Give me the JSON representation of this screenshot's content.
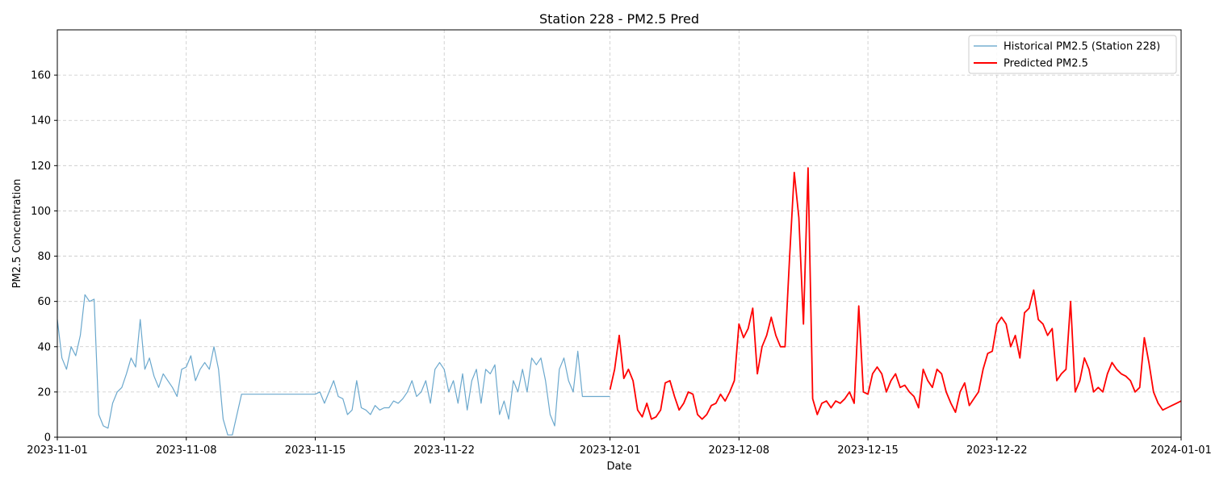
{
  "chart_data": {
    "type": "line",
    "title": "Station 228 - PM2.5 Pred",
    "xlabel": "Date",
    "ylabel": "PM2.5 Concentration",
    "xlim": [
      "2023-11-01",
      "2024-01-01"
    ],
    "ylim": [
      0,
      180
    ],
    "yticks": [
      0,
      20,
      40,
      60,
      80,
      100,
      120,
      140,
      160
    ],
    "xticks": [
      "2023-11-01",
      "2023-11-08",
      "2023-11-15",
      "2023-11-22",
      "2023-12-01",
      "2023-12-08",
      "2023-12-15",
      "2023-12-22",
      "2024-01-01"
    ],
    "grid": true,
    "legend_position": "top-right",
    "series": [
      {
        "name": "Historical PM2.5 (Station 228)",
        "color": "#5b9fc8",
        "x": [
          "2023-11-01",
          "2023-11-01T06",
          "2023-11-01T12",
          "2023-11-01T18",
          "2023-11-02",
          "2023-11-02T06",
          "2023-11-02T12",
          "2023-11-02T18",
          "2023-11-03",
          "2023-11-03T06",
          "2023-11-03T12",
          "2023-11-03T18",
          "2023-11-04",
          "2023-11-04T06",
          "2023-11-04T12",
          "2023-11-04T18",
          "2023-11-05",
          "2023-11-05T06",
          "2023-11-05T12",
          "2023-11-05T18",
          "2023-11-06",
          "2023-11-06T06",
          "2023-11-06T12",
          "2023-11-06T18",
          "2023-11-07",
          "2023-11-07T06",
          "2023-11-07T12",
          "2023-11-07T18",
          "2023-11-08",
          "2023-11-08T06",
          "2023-11-08T12",
          "2023-11-08T18",
          "2023-11-09",
          "2023-11-09T06",
          "2023-11-09T12",
          "2023-11-09T18",
          "2023-11-10",
          "2023-11-10T06",
          "2023-11-10T12",
          "2023-11-10T18",
          "2023-11-11",
          "2023-11-12T06",
          "2023-11-12T09",
          "2023-11-13",
          "2023-11-14",
          "2023-11-15",
          "2023-11-15T06",
          "2023-11-15T12",
          "2023-11-15T18",
          "2023-11-16",
          "2023-11-16T06",
          "2023-11-16T12",
          "2023-11-16T18",
          "2023-11-17",
          "2023-11-17T06",
          "2023-11-17T12",
          "2023-11-17T18",
          "2023-11-18",
          "2023-11-18T06",
          "2023-11-18T12",
          "2023-11-18T18",
          "2023-11-19",
          "2023-11-19T06",
          "2023-11-19T12",
          "2023-11-19T18",
          "2023-11-20",
          "2023-11-20T06",
          "2023-11-20T12",
          "2023-11-20T18",
          "2023-11-21",
          "2023-11-21T06",
          "2023-11-21T12",
          "2023-11-21T18",
          "2023-11-22",
          "2023-11-22T06",
          "2023-11-22T12",
          "2023-11-22T18",
          "2023-11-23",
          "2023-11-23T06",
          "2023-11-23T12",
          "2023-11-23T18",
          "2023-11-24",
          "2023-11-24T06",
          "2023-11-24T12",
          "2023-11-24T18",
          "2023-11-25",
          "2023-11-25T06",
          "2023-11-25T12",
          "2023-11-25T18",
          "2023-11-26",
          "2023-11-26T06",
          "2023-11-26T12",
          "2023-11-26T18",
          "2023-11-27",
          "2023-11-27T06",
          "2023-11-27T12",
          "2023-11-27T18",
          "2023-11-28",
          "2023-11-28T06",
          "2023-11-28T12",
          "2023-11-28T18",
          "2023-11-29",
          "2023-11-29T06",
          "2023-11-29T12",
          "2023-11-29T18",
          "2023-11-30",
          "2023-11-30T06",
          "2023-11-30T12",
          "2023-11-30T18",
          "2023-12-01"
        ],
        "y": [
          52,
          35,
          30,
          40,
          36,
          45,
          63,
          60,
          61,
          10,
          5,
          4,
          15,
          20,
          22,
          28,
          35,
          31,
          52,
          30,
          35,
          27,
          22,
          28,
          25,
          22,
          18,
          30,
          31,
          36,
          25,
          30,
          33,
          30,
          40,
          30,
          8,
          1,
          1,
          10,
          19,
          19,
          19,
          19,
          19,
          19,
          20,
          15,
          20,
          25,
          18,
          17,
          10,
          12,
          25,
          13,
          12,
          10,
          14,
          12,
          13,
          13,
          16,
          15,
          17,
          20,
          25,
          18,
          20,
          25,
          15,
          30,
          33,
          30,
          20,
          25,
          15,
          28,
          12,
          25,
          30,
          15,
          30,
          28,
          32,
          10,
          16,
          8,
          25,
          20,
          30,
          20,
          35,
          32,
          35,
          25,
          10,
          5,
          30,
          35,
          25,
          20,
          38,
          18,
          18,
          18,
          18,
          18,
          18,
          18
        ]
      },
      {
        "name": "Predicted PM2.5",
        "color": "#ff0000",
        "x": [
          "2023-12-01",
          "2023-12-01T06",
          "2023-12-01T12",
          "2023-12-01T18",
          "2023-12-02",
          "2023-12-02T06",
          "2023-12-02T12",
          "2023-12-02T18",
          "2023-12-03",
          "2023-12-03T06",
          "2023-12-03T12",
          "2023-12-03T18",
          "2023-12-04",
          "2023-12-04T06",
          "2023-12-04T12",
          "2023-12-04T18",
          "2023-12-05",
          "2023-12-05T06",
          "2023-12-05T12",
          "2023-12-05T18",
          "2023-12-06",
          "2023-12-06T06",
          "2023-12-06T12",
          "2023-12-06T18",
          "2023-12-07",
          "2023-12-07T06",
          "2023-12-07T12",
          "2023-12-07T18",
          "2023-12-08",
          "2023-12-08T06",
          "2023-12-08T12",
          "2023-12-08T18",
          "2023-12-09",
          "2023-12-09T06",
          "2023-12-09T12",
          "2023-12-09T18",
          "2023-12-10",
          "2023-12-10T06",
          "2023-12-10T12",
          "2023-12-10T18",
          "2023-12-11",
          "2023-12-11T06",
          "2023-12-11T12",
          "2023-12-11T18",
          "2023-12-12",
          "2023-12-12T06",
          "2023-12-12T12",
          "2023-12-12T18",
          "2023-12-13",
          "2023-12-13T06",
          "2023-12-13T12",
          "2023-12-13T18",
          "2023-12-14",
          "2023-12-14T06",
          "2023-12-14T12",
          "2023-12-14T18",
          "2023-12-15",
          "2023-12-15T06",
          "2023-12-15T12",
          "2023-12-15T18",
          "2023-12-16",
          "2023-12-16T06",
          "2023-12-16T12",
          "2023-12-16T18",
          "2023-12-17",
          "2023-12-17T06",
          "2023-12-17T12",
          "2023-12-17T18",
          "2023-12-18",
          "2023-12-18T06",
          "2023-12-18T12",
          "2023-12-18T18",
          "2023-12-19",
          "2023-12-19T06",
          "2023-12-19T12",
          "2023-12-19T18",
          "2023-12-20",
          "2023-12-20T06",
          "2023-12-20T12",
          "2023-12-20T18",
          "2023-12-21",
          "2023-12-21T06",
          "2023-12-21T12",
          "2023-12-21T18",
          "2023-12-22",
          "2023-12-22T06",
          "2023-12-22T12",
          "2023-12-22T18",
          "2023-12-23",
          "2023-12-23T06",
          "2023-12-23T12",
          "2023-12-23T18",
          "2023-12-24",
          "2023-12-24T06",
          "2023-12-24T12",
          "2023-12-24T18",
          "2023-12-25",
          "2023-12-25T06",
          "2023-12-25T12",
          "2023-12-25T18",
          "2023-12-26",
          "2023-12-26T06",
          "2023-12-26T12",
          "2023-12-26T18",
          "2023-12-27",
          "2023-12-27T06",
          "2023-12-27T12",
          "2023-12-27T18",
          "2023-12-28",
          "2023-12-28T06",
          "2023-12-28T12",
          "2023-12-28T18",
          "2023-12-29",
          "2023-12-29T06",
          "2023-12-29T12",
          "2023-12-29T18",
          "2023-12-30",
          "2023-12-30T06",
          "2023-12-30T12",
          "2023-12-30T18",
          "2023-12-31",
          "2023-12-31T06",
          "2023-12-31T12",
          "2023-12-31T18",
          "2024-01-01"
        ],
        "y": [
          21,
          30,
          45,
          26,
          30,
          25,
          12,
          9,
          15,
          8,
          9,
          12,
          24,
          25,
          18,
          12,
          15,
          20,
          19,
          10,
          8,
          10,
          14,
          15,
          19,
          16,
          20,
          25,
          50,
          44,
          48,
          57,
          28,
          40,
          45,
          53,
          45,
          40,
          40,
          80,
          117,
          97,
          50,
          119,
          17,
          10,
          15,
          16,
          13,
          16,
          15,
          17,
          20,
          15,
          58,
          20,
          19,
          28,
          31,
          28,
          20,
          25,
          28,
          22,
          23,
          20,
          18,
          13,
          30,
          25,
          22,
          30,
          28,
          20,
          15,
          11,
          20,
          24,
          14,
          17,
          20,
          30,
          37,
          38,
          50,
          53,
          50,
          40,
          45,
          35,
          55,
          57,
          65,
          52,
          50,
          45,
          48,
          25,
          28,
          30,
          60,
          20,
          25,
          35,
          30,
          20,
          22,
          20,
          28,
          33,
          30,
          28,
          27,
          25,
          20,
          22,
          44,
          33,
          20,
          15,
          12,
          13,
          14,
          15,
          16
        ]
      }
    ]
  }
}
